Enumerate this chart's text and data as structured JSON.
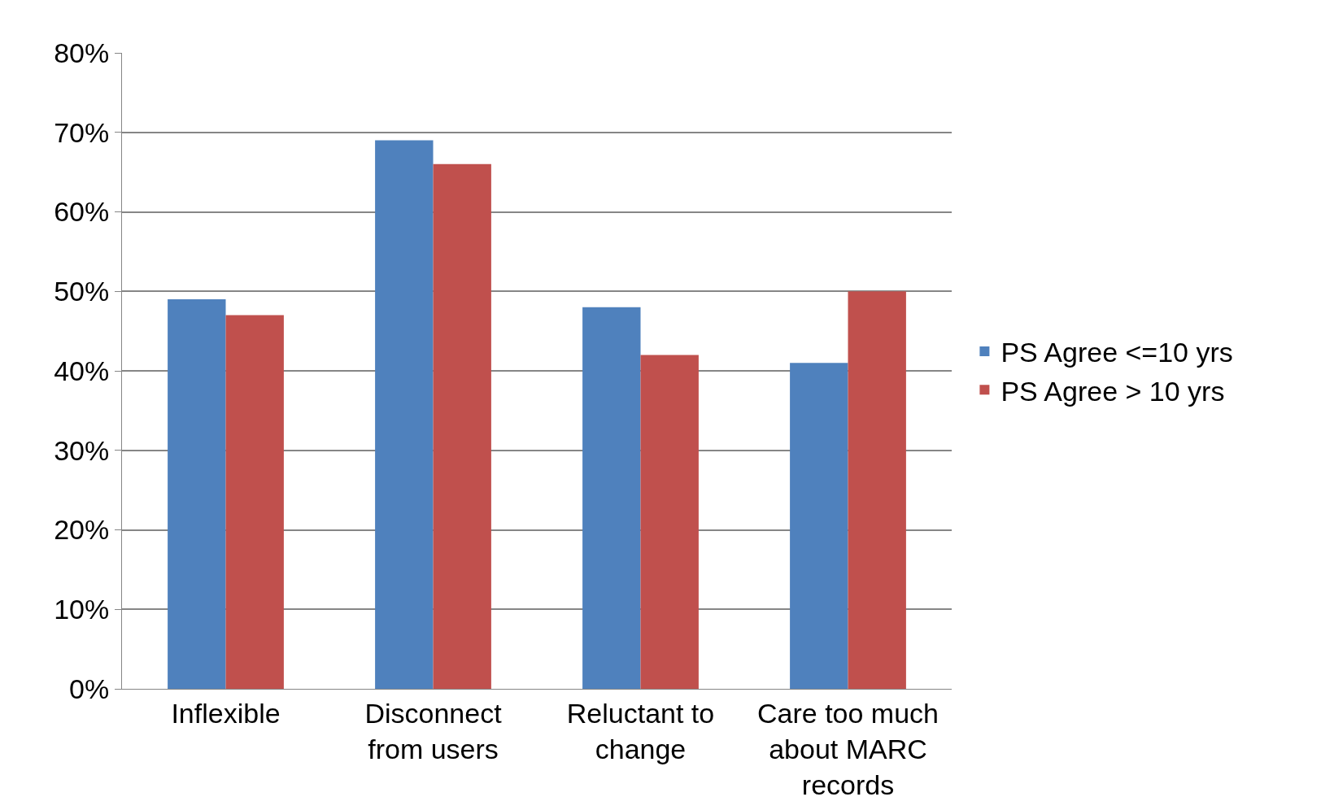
{
  "chart_data": {
    "type": "bar",
    "categories": [
      "Inflexible",
      "Disconnect from users",
      "Reluctant to change",
      "Care too much about MARC records"
    ],
    "series": [
      {
        "name": "PS Agree <=10 yrs",
        "color": "#4f81bd",
        "values": [
          49,
          69,
          48,
          41
        ]
      },
      {
        "name": "PS Agree > 10 yrs",
        "color": "#c0504d",
        "values": [
          47,
          66,
          42,
          50
        ]
      }
    ],
    "ylim": [
      0,
      80
    ],
    "yticks": [
      {
        "value": 0,
        "label": "0%"
      },
      {
        "value": 10,
        "label": "10%"
      },
      {
        "value": 20,
        "label": "20%"
      },
      {
        "value": 30,
        "label": "30%"
      },
      {
        "value": 40,
        "label": "40%"
      },
      {
        "value": 50,
        "label": "50%"
      },
      {
        "value": 60,
        "label": "60%"
      },
      {
        "value": 70,
        "label": "70%"
      },
      {
        "value": 80,
        "label": "80%"
      }
    ],
    "grid": "y",
    "legend": "right"
  }
}
